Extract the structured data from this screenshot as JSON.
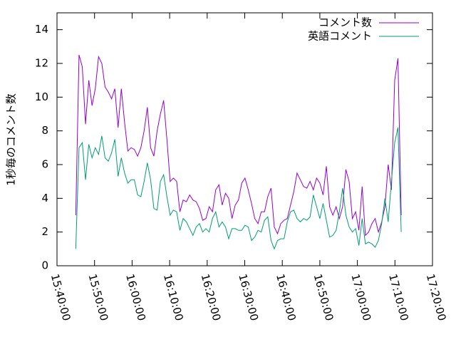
{
  "chart_data": {
    "type": "line",
    "ylabel": "1秒毎のコメント数",
    "x": [
      "15:45:00",
      "15:45:52",
      "15:46:44",
      "15:47:36",
      "15:48:28",
      "15:49:20",
      "15:50:12",
      "15:51:04",
      "15:51:56",
      "15:52:48",
      "15:53:40",
      "15:54:32",
      "15:55:24",
      "15:56:16",
      "15:57:08",
      "15:58:00",
      "15:58:52",
      "15:59:44",
      "16:00:36",
      "16:01:28",
      "16:02:20",
      "16:03:12",
      "16:04:04",
      "16:04:56",
      "16:05:48",
      "16:06:40",
      "16:07:32",
      "16:08:24",
      "16:09:16",
      "16:10:08",
      "16:11:00",
      "16:11:52",
      "16:12:44",
      "16:13:36",
      "16:14:28",
      "16:15:20",
      "16:16:12",
      "16:17:04",
      "16:17:56",
      "16:18:48",
      "16:19:40",
      "16:20:32",
      "16:21:24",
      "16:22:16",
      "16:23:08",
      "16:24:00",
      "16:24:52",
      "16:25:44",
      "16:26:36",
      "16:27:28",
      "16:28:20",
      "16:29:12",
      "16:30:04",
      "16:30:56",
      "16:31:48",
      "16:32:40",
      "16:33:32",
      "16:34:24",
      "16:35:16",
      "16:36:08",
      "16:37:00",
      "16:37:52",
      "16:38:44",
      "16:39:36",
      "16:40:28",
      "16:41:20",
      "16:42:12",
      "16:43:04",
      "16:43:56",
      "16:44:48",
      "16:45:40",
      "16:46:32",
      "16:47:24",
      "16:48:16",
      "16:49:08",
      "16:50:00",
      "16:50:52",
      "16:51:44",
      "16:52:36",
      "16:53:28",
      "16:54:20",
      "16:55:12",
      "16:56:04",
      "16:56:56",
      "16:57:48",
      "16:58:40",
      "16:59:32",
      "17:00:24",
      "17:01:16",
      "17:02:08",
      "17:03:00",
      "17:03:52",
      "17:04:44",
      "17:05:36",
      "17:06:28",
      "17:07:20",
      "17:08:12",
      "17:09:04",
      "17:09:56",
      "17:10:48",
      "17:11:40"
    ],
    "series": [
      {
        "name": "コメント数",
        "color": "#9400d3",
        "values": [
          3.0,
          12.5,
          11.8,
          8.4,
          11.0,
          9.5,
          10.5,
          12.4,
          12.0,
          10.6,
          10.3,
          9.9,
          10.5,
          8.2,
          10.5,
          8.5,
          6.8,
          7.0,
          6.9,
          6.5,
          7.0,
          8.0,
          9.4,
          7.0,
          6.5,
          8.0,
          9.0,
          9.8,
          7.5,
          5.0,
          5.2,
          5.0,
          3.2,
          3.9,
          3.8,
          4.2,
          3.9,
          3.8,
          3.4,
          2.7,
          2.8,
          3.5,
          3.2,
          4.5,
          4.8,
          3.6,
          4.3,
          4.0,
          2.8,
          3.6,
          3.9,
          4.9,
          5.2,
          4.5,
          3.7,
          2.8,
          2.5,
          3.2,
          3.2,
          4.1,
          4.6,
          2.3,
          1.9,
          2.5,
          2.7,
          2.8,
          3.6,
          4.4,
          5.5,
          5.1,
          4.7,
          4.6,
          5.0,
          4.5,
          5.2,
          4.9,
          4.2,
          5.9,
          3.5,
          3.0,
          3.5,
          2.8,
          3.5,
          5.7,
          5.0,
          2.8,
          3.2,
          2.1,
          4.7,
          1.8,
          2.0,
          2.5,
          2.8,
          2.0,
          2.6,
          3.5,
          6.0,
          4.5,
          11.0,
          12.3,
          3.0
        ]
      },
      {
        "name": "英語コメント",
        "color": "#009e73",
        "values": [
          1.0,
          7.0,
          7.3,
          5.1,
          7.2,
          6.4,
          7.0,
          6.6,
          7.7,
          6.4,
          6.2,
          6.7,
          7.5,
          5.3,
          6.4,
          5.5,
          4.9,
          5.1,
          5.1,
          4.2,
          4.1,
          5.0,
          6.1,
          5.1,
          3.4,
          3.3,
          5.0,
          5.4,
          4.1,
          3.0,
          3.3,
          3.2,
          2.1,
          2.8,
          2.6,
          2.2,
          1.8,
          2.3,
          2.5,
          2.0,
          2.2,
          2.0,
          2.8,
          3.2,
          2.3,
          2.6,
          2.3,
          1.6,
          2.2,
          2.2,
          2.1,
          2.1,
          2.4,
          2.3,
          1.5,
          1.7,
          2.1,
          2.0,
          2.7,
          2.9,
          1.5,
          1.0,
          1.5,
          1.6,
          1.6,
          2.6,
          3.2,
          3.3,
          2.8,
          2.6,
          2.8,
          2.7,
          2.9,
          4.2,
          3.5,
          2.8,
          3.7,
          2.7,
          1.7,
          1.8,
          2.1,
          3.2,
          4.6,
          3.0,
          2.3,
          2.0,
          2.2,
          1.2,
          2.8,
          1.3,
          1.4,
          1.3,
          1.1,
          1.5,
          2.5,
          4.0,
          2.6,
          5.0,
          7.3,
          8.2,
          2.0
        ]
      }
    ],
    "xlim": [
      "15:40:00",
      "17:20:00"
    ],
    "xticks": [
      "15:40:00",
      "15:50:00",
      "16:00:00",
      "16:10:00",
      "16:20:00",
      "16:30:00",
      "16:40:00",
      "16:50:00",
      "17:00:00",
      "17:10:00",
      "17:20:00"
    ],
    "ylim": [
      0,
      15
    ],
    "yticks": [
      0,
      2,
      4,
      6,
      8,
      10,
      12,
      14
    ],
    "legend": "top-right"
  }
}
